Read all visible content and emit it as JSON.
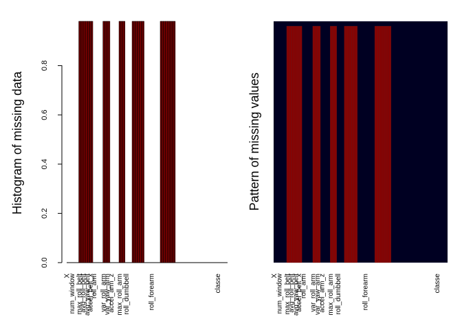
{
  "chart_data": [
    {
      "type": "bar",
      "ylabel": "Histogram of missing data",
      "ylim": [
        0,
        0.98
      ],
      "yticks": [
        "0.0",
        "0.2",
        "0.4",
        "0.6",
        "0.8"
      ],
      "ytick_values": [
        0,
        0.2,
        0.4,
        0.6,
        0.8
      ],
      "xlabels_shown": [
        "X",
        "num_window",
        "max_roll_belt",
        "avg_roll_belt",
        "avg_yaw_belt",
        "accel_belt_x",
        "roll_arm",
        "var_roll_arm",
        "var_yaw_arm",
        "accel_arm_z",
        "max_roll_arm",
        "roll_dumbbell",
        "roll_forearm",
        "classe"
      ],
      "num_bars": 160,
      "missing_fraction": 0.98,
      "present_fraction": 0,
      "missing_runs": [
        [
          12,
          25
        ],
        [
          36,
          42
        ],
        [
          52,
          57
        ],
        [
          65,
          76
        ],
        [
          93,
          107
        ]
      ],
      "bar_fill": "#8b0000",
      "bar_border": "#000000",
      "grid": false
    },
    {
      "type": "heatmap",
      "ylabel": "Pattern of missing values",
      "xlabels_shown": [
        "X",
        "num_window",
        "max_roll_belt",
        "avg_roll_belt",
        "avg_yaw_belt",
        "accel_belt_x",
        "roll_arm",
        "var_roll_arm",
        "var_yaw_arm",
        "accel_arm_z",
        "max_roll_arm",
        "roll_dumbbell",
        "roll_forearm",
        "classe"
      ],
      "num_columns": 160,
      "missing_runs": [
        [
          12,
          25
        ],
        [
          36,
          42
        ],
        [
          52,
          57
        ],
        [
          65,
          76
        ],
        [
          93,
          107
        ]
      ],
      "missing_fraction": 0.98,
      "colors": {
        "present": "#000022",
        "missing": "#8b0000",
        "column_border": "#6a1a1a"
      }
    }
  ]
}
